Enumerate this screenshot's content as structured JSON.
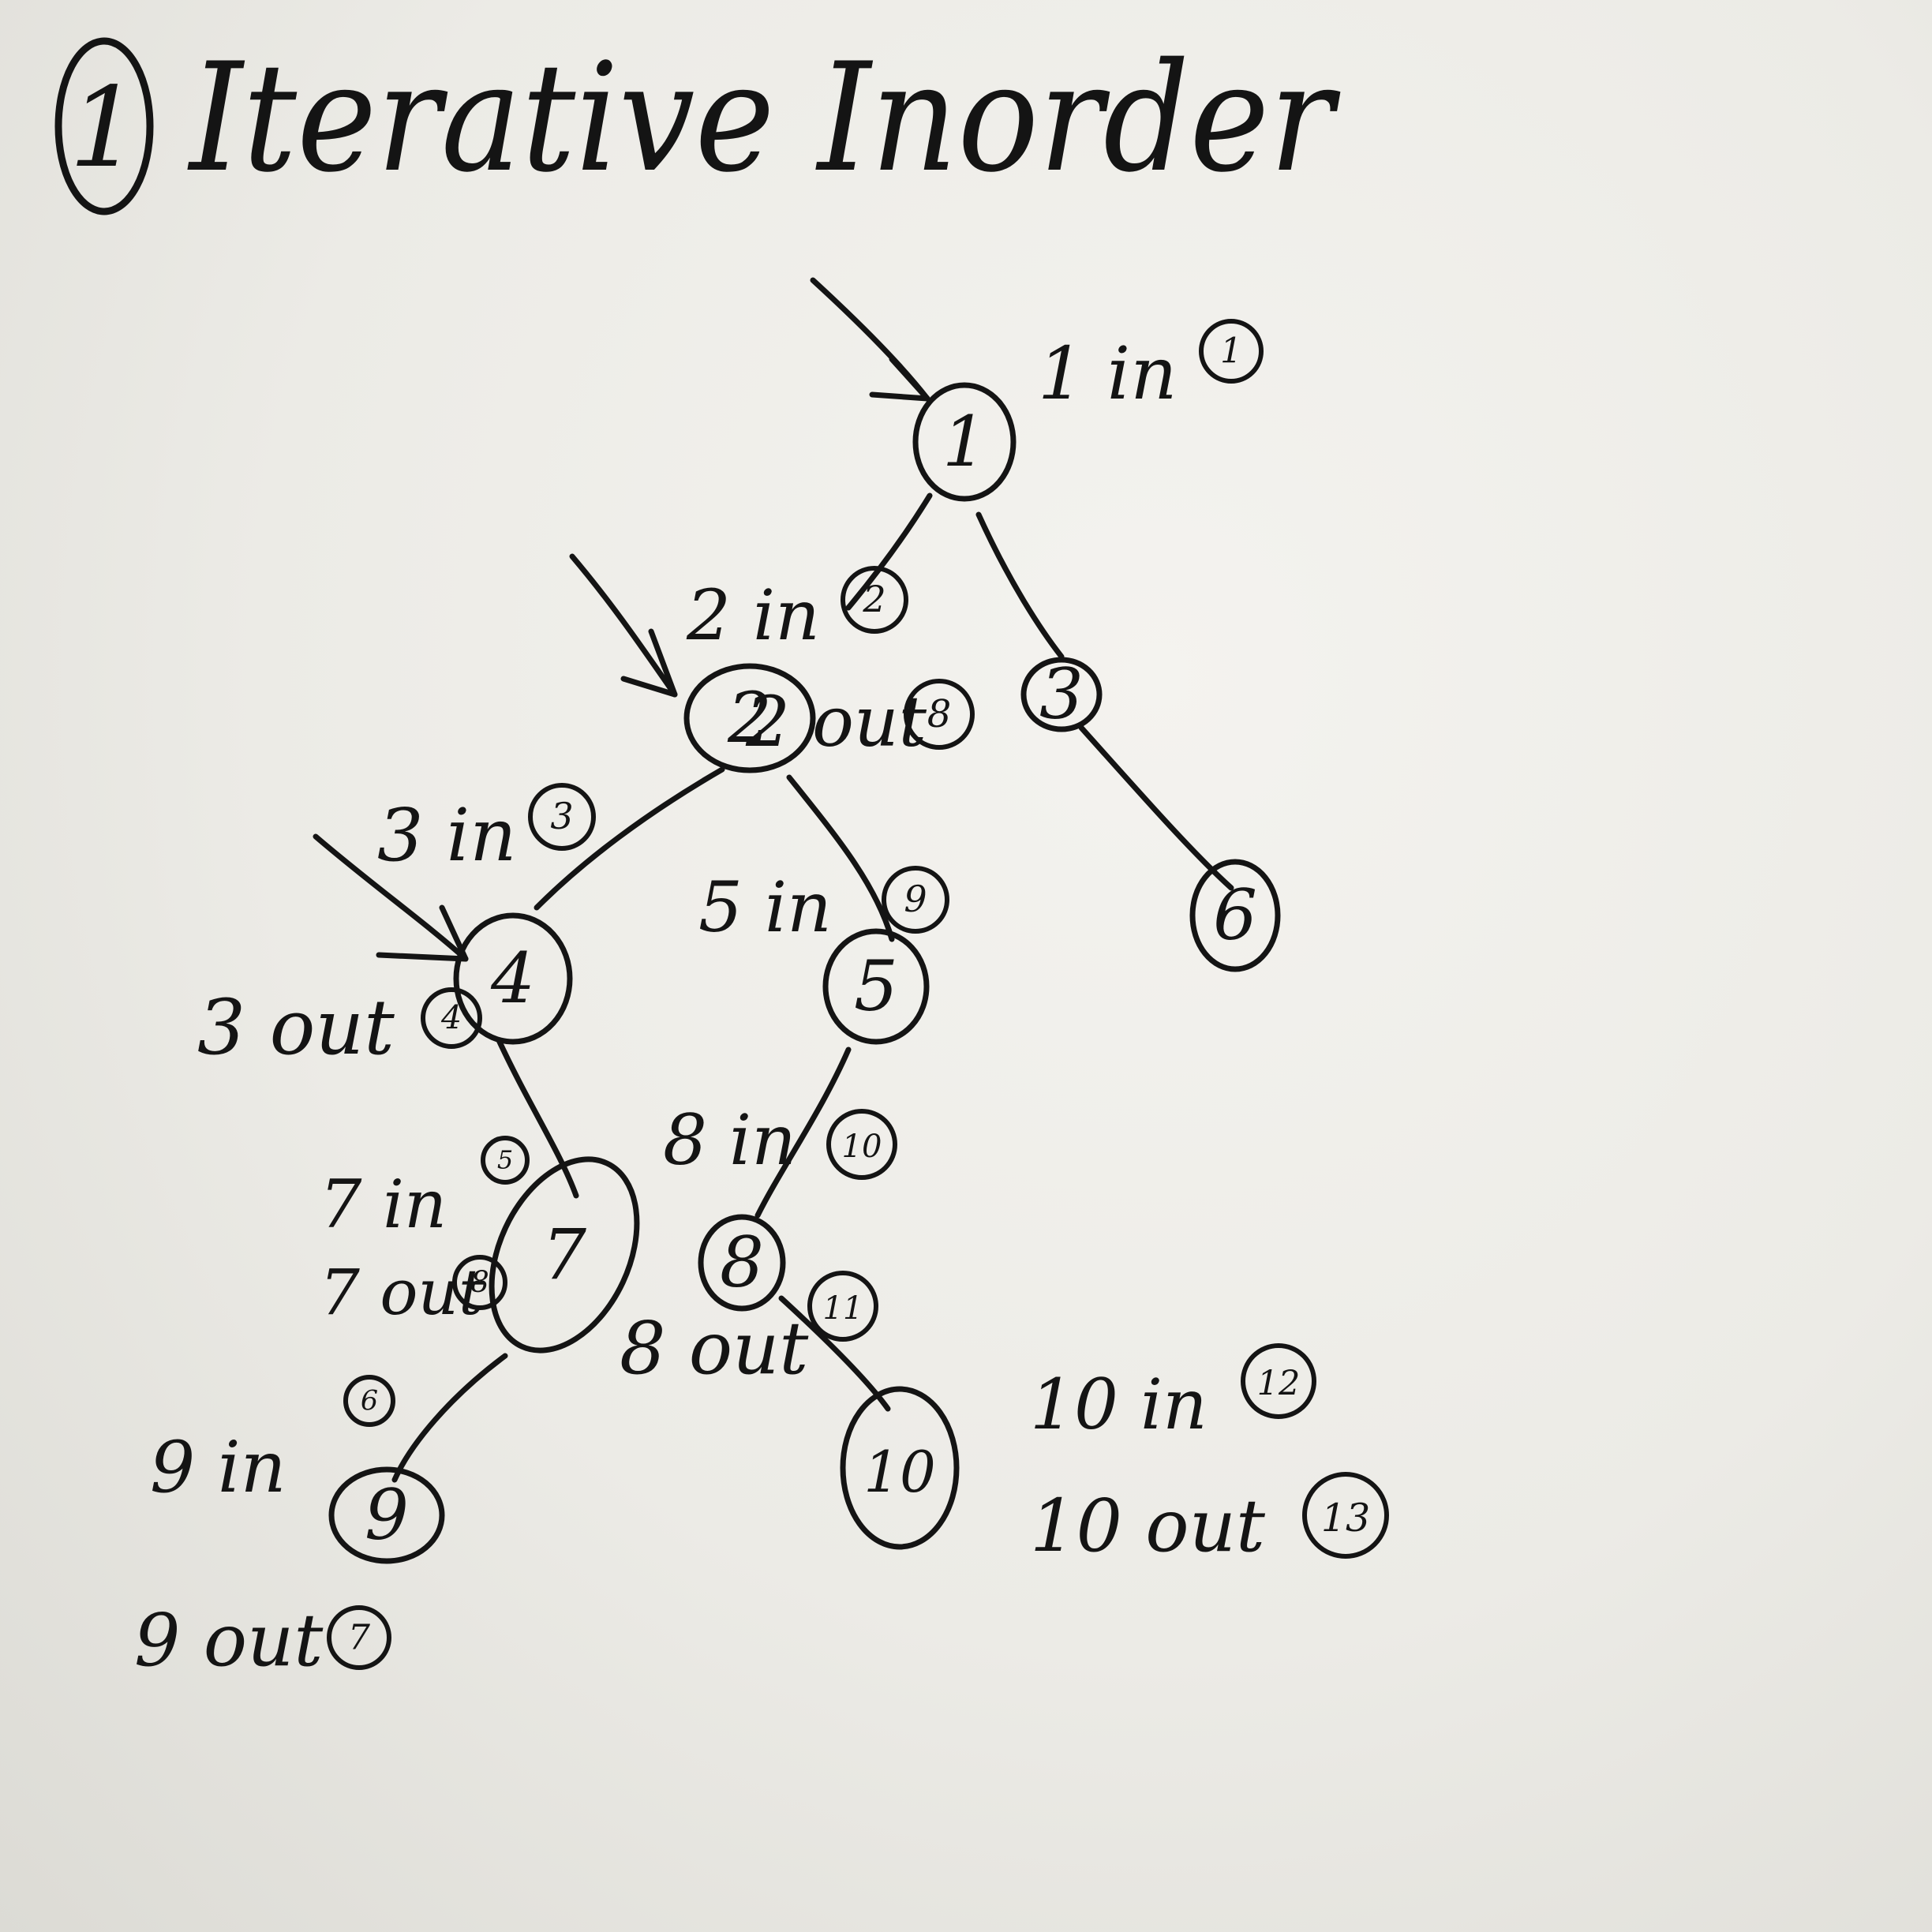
{
  "title": {
    "number": "1",
    "text": "Iterative Inorder"
  },
  "nodes": [
    {
      "id": "1",
      "label": "1"
    },
    {
      "id": "2",
      "label": "2"
    },
    {
      "id": "3",
      "label": "3"
    },
    {
      "id": "4",
      "label": "4"
    },
    {
      "id": "5",
      "label": "5"
    },
    {
      "id": "6",
      "label": "6"
    },
    {
      "id": "7",
      "label": "7"
    },
    {
      "id": "8",
      "label": "8"
    },
    {
      "id": "9",
      "label": "9"
    },
    {
      "id": "10",
      "label": "10"
    }
  ],
  "edges": [
    [
      "1",
      "2"
    ],
    [
      "1",
      "3"
    ],
    [
      "2",
      "4"
    ],
    [
      "2",
      "5"
    ],
    [
      "3",
      "6"
    ],
    [
      "4",
      "7"
    ],
    [
      "5",
      "8"
    ],
    [
      "7",
      "9"
    ],
    [
      "8",
      "10"
    ]
  ],
  "annotations": [
    {
      "id": "1in",
      "text": "1 in",
      "step": "1"
    },
    {
      "id": "2in",
      "text": "2 in",
      "step": "2"
    },
    {
      "id": "2out",
      "text": "2 out",
      "step": "8"
    },
    {
      "id": "3in",
      "text": "3 in",
      "step": "3"
    },
    {
      "id": "3out",
      "text": "3 out",
      "step": "4"
    },
    {
      "id": "5in",
      "text": "5 in",
      "step": "9"
    },
    {
      "id": "7in",
      "text": "7 in",
      "step": "5"
    },
    {
      "id": "7out",
      "text": "7 out",
      "step": "8"
    },
    {
      "id": "8in",
      "text": "8 in",
      "step": "10"
    },
    {
      "id": "8out",
      "text": "8 out",
      "step": "11"
    },
    {
      "id": "9in",
      "text": "9 in",
      "step": "6"
    },
    {
      "id": "9out",
      "text": "9 out",
      "step": "7"
    },
    {
      "id": "10in",
      "text": "10 in",
      "step": "12"
    },
    {
      "id": "10out",
      "text": "10 out",
      "step": "13"
    }
  ],
  "colors": {
    "ink": "#141414",
    "paper": "#ecebe6"
  }
}
